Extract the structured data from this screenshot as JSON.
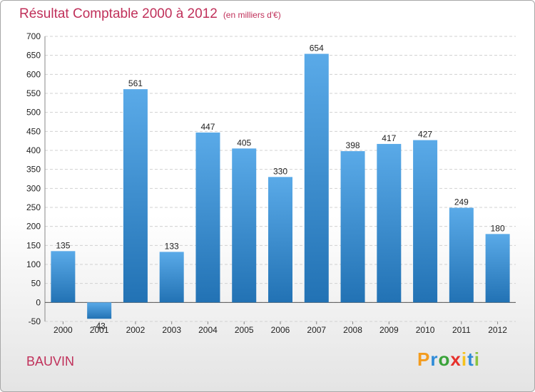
{
  "title": "Résultat Comptable 2000 à 2012",
  "subtitle": "(en milliers d'€)",
  "location": "BAUVIN",
  "logo": {
    "letters": [
      "P",
      "r",
      "o",
      "x",
      "i",
      "t",
      "i"
    ],
    "colors": [
      "#f39c1f",
      "#2e8bd8",
      "#3aa33a",
      "#e6302b",
      "#f6c21c",
      "#2e8bd8",
      "#8bc43f"
    ]
  },
  "colors": {
    "bar_light": "#5aaae8",
    "bar_dark": "#2272b4",
    "title": "#c0305a",
    "grid": "#d0d0d0"
  },
  "chart_data": {
    "type": "bar",
    "title": "Résultat Comptable 2000 à 2012",
    "subtitle": "(en milliers d'€)",
    "categories": [
      "2000",
      "2001",
      "2002",
      "2003",
      "2004",
      "2005",
      "2006",
      "2007",
      "2008",
      "2009",
      "2010",
      "2011",
      "2012"
    ],
    "values": [
      135,
      -43,
      561,
      133,
      447,
      405,
      330,
      654,
      398,
      417,
      427,
      249,
      180
    ],
    "value_labels": [
      "135",
      "-43",
      "561",
      "133",
      "447",
      "405",
      "330",
      "654",
      "398",
      "417",
      "427",
      "249",
      "180"
    ],
    "ylim": [
      -50,
      700
    ],
    "yticks": [
      -50,
      0,
      50,
      100,
      150,
      200,
      250,
      300,
      350,
      400,
      450,
      500,
      550,
      600,
      650,
      700
    ],
    "xlabel": "",
    "ylabel": "",
    "grid": true
  }
}
